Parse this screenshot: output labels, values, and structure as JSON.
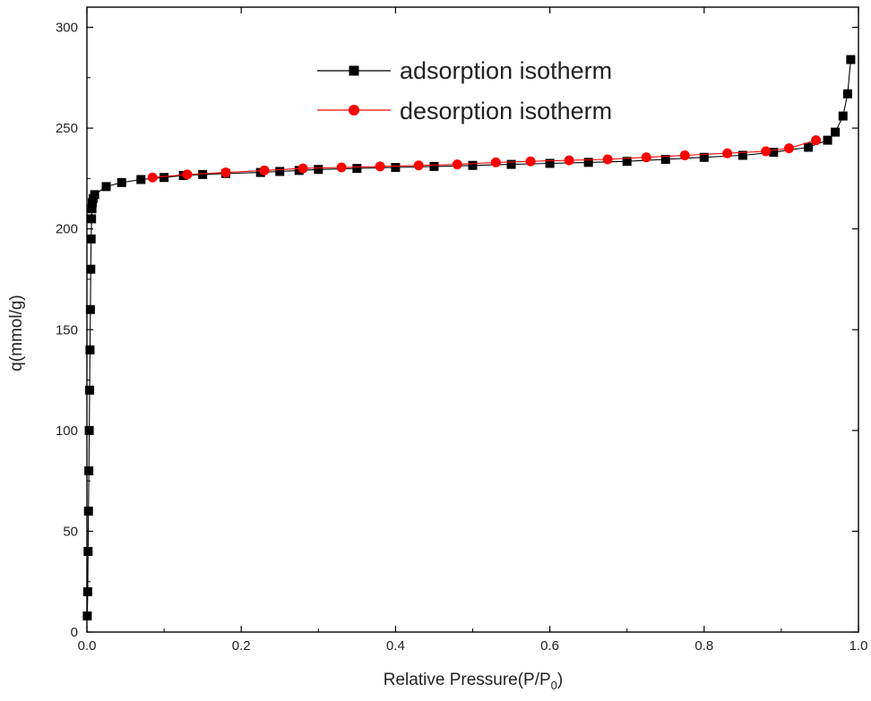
{
  "chart_data": {
    "type": "scatter",
    "xlabel": "Relative Pressure(P/P",
    "xlabel_sub": "0",
    "xlabel_end": ")",
    "ylabel": "q(mmol/g)",
    "xlim": [
      0.0,
      1.0
    ],
    "ylim": [
      0,
      310
    ],
    "xticks": [
      0.0,
      0.2,
      0.4,
      0.6,
      0.8,
      1.0
    ],
    "xtick_labels": [
      "0.0",
      "0.2",
      "0.4",
      "0.6",
      "0.8",
      "1.0"
    ],
    "yticks": [
      0,
      50,
      100,
      150,
      200,
      250,
      300
    ],
    "ytick_labels": [
      "0",
      "50",
      "100",
      "150",
      "200",
      "250",
      "300"
    ],
    "grid": false,
    "legend_position": "top-center",
    "series": [
      {
        "name": "adsorption isotherm",
        "marker": "square",
        "color": "#000000",
        "x": [
          0.0005,
          0.001,
          0.0015,
          0.002,
          0.0025,
          0.003,
          0.0035,
          0.004,
          0.0045,
          0.005,
          0.0055,
          0.006,
          0.0065,
          0.007,
          0.008,
          0.01,
          0.025,
          0.045,
          0.07,
          0.1,
          0.125,
          0.15,
          0.18,
          0.225,
          0.25,
          0.275,
          0.3,
          0.35,
          0.4,
          0.45,
          0.5,
          0.55,
          0.6,
          0.65,
          0.7,
          0.75,
          0.8,
          0.85,
          0.89,
          0.935,
          0.96,
          0.97,
          0.98,
          0.986,
          0.99
        ],
        "y": [
          8,
          20,
          40,
          60,
          80,
          100,
          120,
          140,
          160,
          180,
          195,
          205,
          210,
          213,
          215,
          217,
          221,
          223,
          224.5,
          225.5,
          226.5,
          227,
          227.5,
          228,
          228.5,
          229,
          229.5,
          230,
          230.5,
          231,
          231.5,
          232,
          232.5,
          233,
          233.5,
          234.5,
          235.5,
          236.5,
          238,
          240.5,
          244,
          248,
          256,
          267,
          284
        ]
      },
      {
        "name": "desorption isotherm",
        "marker": "circle",
        "color": "#ff0000",
        "x": [
          0.085,
          0.13,
          0.18,
          0.23,
          0.28,
          0.33,
          0.38,
          0.43,
          0.48,
          0.53,
          0.575,
          0.625,
          0.675,
          0.725,
          0.775,
          0.83,
          0.88,
          0.91,
          0.945
        ],
        "y": [
          225.5,
          227,
          228,
          229,
          230,
          230.5,
          231,
          231.5,
          232,
          233,
          233.5,
          234,
          234.5,
          235.5,
          236.5,
          237.5,
          238.5,
          240,
          244
        ]
      }
    ]
  }
}
